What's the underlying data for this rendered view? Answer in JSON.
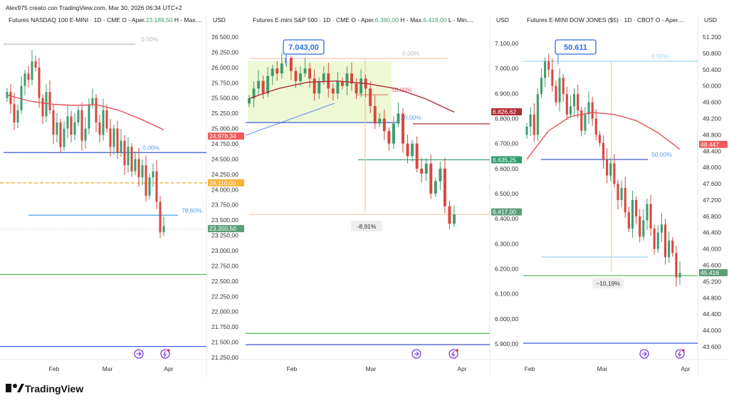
{
  "watermark": "Alex975 creato con TradingView.com, Mar 30, 2026 06:34 UTC+2",
  "brand": "TradingView",
  "chart_data": [
    {
      "type": "candlestick",
      "title": "Futures NASDAQ 100 E-MINI · 1D · CME  O - Aper.",
      "title_open_value": "23.189,50",
      "title_tail": "  H - Max....",
      "currency": "USD",
      "ylim": [
        21250,
        26500
      ],
      "y_tick_labels": [
        "26.500,00",
        "26.250,00",
        "26.000,00",
        "25.750,00",
        "25.500,00",
        "25.250,00",
        "25.000,00",
        "24.750,00",
        "24.500,00",
        "24.250,00",
        "24.000,00",
        "23.750,00",
        "23.500,00",
        "23.250,00",
        "23.000,00",
        "22.750,00",
        "22.500,00",
        "22.250,00",
        "22.000,00",
        "21.750,00",
        "21.500,00",
        "21.250,00"
      ],
      "x_tick_labels": [
        "Feb",
        "Mar",
        "Apr"
      ],
      "first_open": 25500,
      "close": [
        25600,
        25400,
        25100,
        25300,
        25700,
        25900,
        25800,
        26100,
        26000,
        25500,
        25200,
        25600,
        25300,
        24900,
        25100,
        24700,
        25000,
        25200,
        24900,
        25100,
        25300,
        24800,
        25000,
        25400,
        25500,
        25100,
        24900,
        25300,
        25000,
        24700,
        25000,
        24600,
        24800,
        24400,
        24700,
        24300,
        24500,
        24200,
        24400,
        23900,
        24200,
        24300,
        23800,
        23300,
        23400
      ],
      "moving_average": [
        25550,
        25450,
        25400,
        25380,
        25390,
        25300,
        25150,
        24980
      ],
      "ma_color": "#e8505b",
      "levels": [
        {
          "price": 26383,
          "color": "#bbbbbb",
          "label": "0,00%"
        },
        {
          "price": 24607,
          "color": "#3a5bd9",
          "label": "0,00%",
          "label_color": "#5b9bf0"
        },
        {
          "price": 24110,
          "color": "#f5a623",
          "dashed": true
        },
        {
          "price": 23580,
          "color": "#4aa3e0",
          "label": "78,60%"
        },
        {
          "price": 23350,
          "color": "#cccccc",
          "dotted": true
        },
        {
          "price": 22610,
          "color": "#4caf50"
        },
        {
          "price": 21430,
          "color": "#3a5bd9"
        }
      ],
      "price_badges": [
        {
          "text": "24.978,34",
          "value": 24978.34,
          "color": "#f05a5a"
        },
        {
          "text": "24.110,00",
          "value": 24110,
          "color": "#f7b23b"
        },
        {
          "text": "23.350,50",
          "value": 23350.5,
          "color": "#5a9e7a"
        }
      ]
    },
    {
      "type": "candlestick",
      "title": "Futures E-mini S&P 500 · 1D · CME  O - Aper.",
      "title_open_value": "6.380,00",
      "title_mid": "  H - Max.",
      "title_high_value": "6.419,00",
      "title_tail": "  L - Min....",
      "currency": "USD",
      "ylim": [
        5900,
        7100
      ],
      "y_tick_labels": [
        "7.100,00",
        "7.000,00",
        "6.900,00",
        "6.800,00",
        "6.700,00",
        "6.600,00",
        "6.500,00",
        "6.400,00",
        "6.300,00",
        "6.200,00",
        "6.100,00",
        "6.000,00",
        "5.900,00"
      ],
      "x_tick_labels": [
        "Feb",
        "Mar",
        "Apr"
      ],
      "first_open": 6860,
      "close": [
        6880,
        6920,
        6950,
        6900,
        6970,
        7000,
        6980,
        7020,
        7043,
        6990,
        6950,
        6980,
        7000,
        6960,
        6900,
        6950,
        6980,
        6920,
        6900,
        6950,
        6930,
        6980,
        6940,
        6900,
        6960,
        6920,
        6850,
        6780,
        6800,
        6750,
        6700,
        6780,
        6820,
        6700,
        6650,
        6700,
        6600,
        6580,
        6620,
        6500,
        6550,
        6600,
        6450,
        6380,
        6417
      ],
      "moving_average": [
        6880,
        6920,
        6945,
        6950,
        6940,
        6920,
        6880,
        6826
      ],
      "ma_color": "#b02a37",
      "levels": [
        {
          "price": 7040,
          "color": "#f3c9a8",
          "label": "0,00%",
          "label_color": "#bbbbbb"
        },
        {
          "price": 6895,
          "color": "#e88a70",
          "label": "50,00%",
          "label_color": "#e06070"
        },
        {
          "price": 6784,
          "color": "#3a5bd9",
          "label": "50,00%",
          "label_color": "#5b9bf0"
        },
        {
          "price": 6779,
          "color": "#b02a37"
        },
        {
          "price": 6635.25,
          "color": "#2e9e6e"
        },
        {
          "price": 6417,
          "color": "#f3c9a8"
        },
        {
          "price": 5942,
          "color": "#4caf50"
        },
        {
          "price": 5897,
          "color": "#2a3fb0"
        }
      ],
      "callout": "7.043,00",
      "range_label": "-8,91%",
      "price_badges": [
        {
          "text": "6.826,62",
          "value": 6826.62,
          "color": "#b02a37"
        },
        {
          "text": "6.635,25",
          "value": 6635.25,
          "color": "#2e9e6e"
        },
        {
          "text": "6.417,00",
          "value": 6417,
          "color": "#5a9e7a"
        }
      ]
    },
    {
      "type": "candlestick",
      "title": "Futures E-MINI DOW JONES ($5) · 1D · CBOT  O - Aper....",
      "currency": "USD",
      "ylim": [
        43600,
        51200
      ],
      "y_tick_labels": [
        "51.200",
        "50.800",
        "50.400",
        "50.000",
        "49.600",
        "49.200",
        "48.800",
        "48.400",
        "48.000",
        "47.600",
        "47.200",
        "46.800",
        "46.400",
        "46.000",
        "45.600",
        "45.200",
        "44.800",
        "44.400",
        "44.000",
        "43.600"
      ],
      "x_tick_labels": [
        "Feb",
        "Mar",
        "Apr"
      ],
      "first_open": 48800,
      "close": [
        49000,
        49300,
        48800,
        49800,
        50200,
        50600,
        50400,
        50000,
        49600,
        50200,
        49800,
        49300,
        49500,
        49800,
        49400,
        48900,
        49300,
        49600,
        49200,
        48800,
        48600,
        48200,
        47800,
        48100,
        47600,
        47200,
        47500,
        46900,
        46500,
        47200,
        46800,
        46300,
        46700,
        47100,
        46500,
        46000,
        46400,
        46600,
        45800,
        46200,
        45900,
        45300,
        45416
      ],
      "moving_average": [
        48200,
        48900,
        49250,
        49350,
        49300,
        49150,
        48850,
        48447
      ],
      "ma_color": "#e8505b",
      "levels": [
        {
          "price": 50606,
          "color": "#9fd3ea",
          "label": "0,00%",
          "label_color": "#9fd3ea"
        },
        {
          "price": 48195,
          "color": "#3a5bd9",
          "label": "50,00%",
          "label_color": "#5b9bf0"
        },
        {
          "price": 45801,
          "color": "#9fd3ea"
        },
        {
          "price": 45346,
          "color": "#4caf50"
        },
        {
          "price": 43687,
          "color": "#3a5bd9"
        }
      ],
      "callout": "50.611",
      "range_label": "−10,19%",
      "price_badges": [
        {
          "text": "48.447",
          "value": 48447,
          "color": "#f05a5a"
        },
        {
          "text": "45.416",
          "value": 45416,
          "color": "#5a9e7a"
        }
      ]
    }
  ],
  "colors": {
    "up": "#3f9c6e",
    "down": "#d9473c",
    "callout": "#2f6fe0",
    "event_icon": "#7b3fe4"
  }
}
